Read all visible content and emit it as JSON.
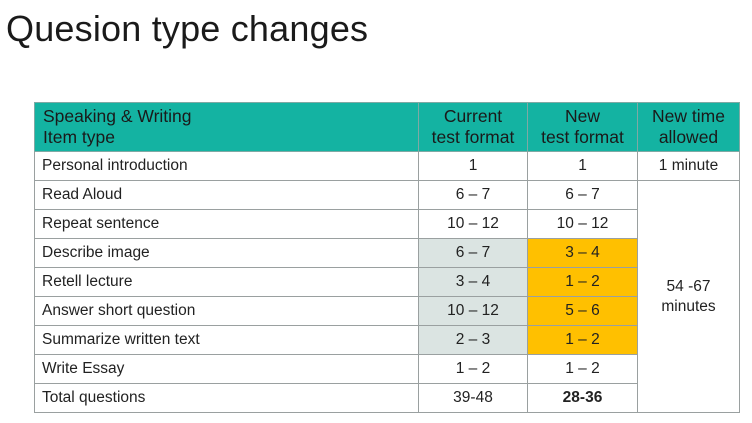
{
  "title": "Quesion type changes",
  "table": {
    "headers": {
      "type_line1": "Speaking & Writing",
      "type_line2": "Item type",
      "current_line1": "Current",
      "current_line2": "test format",
      "new_line1": "New",
      "new_line2": "test format",
      "time_line1": "New time",
      "time_line2": "allowed"
    },
    "rows": [
      {
        "type": "Personal introduction",
        "current": "1",
        "new": "1"
      },
      {
        "type": "Read Aloud",
        "current": "6 – 7",
        "new": "6 – 7"
      },
      {
        "type": "Repeat sentence",
        "current": "10 – 12",
        "new": "10 – 12"
      },
      {
        "type": "Describe image",
        "current": "6 – 7",
        "new": "3 – 4"
      },
      {
        "type": "Retell lecture",
        "current": "3 – 4",
        "new": "1 – 2"
      },
      {
        "type": "Answer short question",
        "current": "10 – 12",
        "new": "5 – 6"
      },
      {
        "type": "Summarize written text",
        "current": "2 – 3",
        "new": "1 – 2"
      },
      {
        "type": "Write Essay",
        "current": "1 – 2",
        "new": "1 – 2"
      },
      {
        "type": "Total questions",
        "current": "39-48",
        "new": "28-36"
      }
    ],
    "time_intro": "1 minute",
    "time_main_line1": "54 -67",
    "time_main_line2": "minutes"
  },
  "colors": {
    "header_teal": "#14b3a2",
    "changed_gray": "#dbe4e2",
    "changed_orange": "#ffc000"
  }
}
